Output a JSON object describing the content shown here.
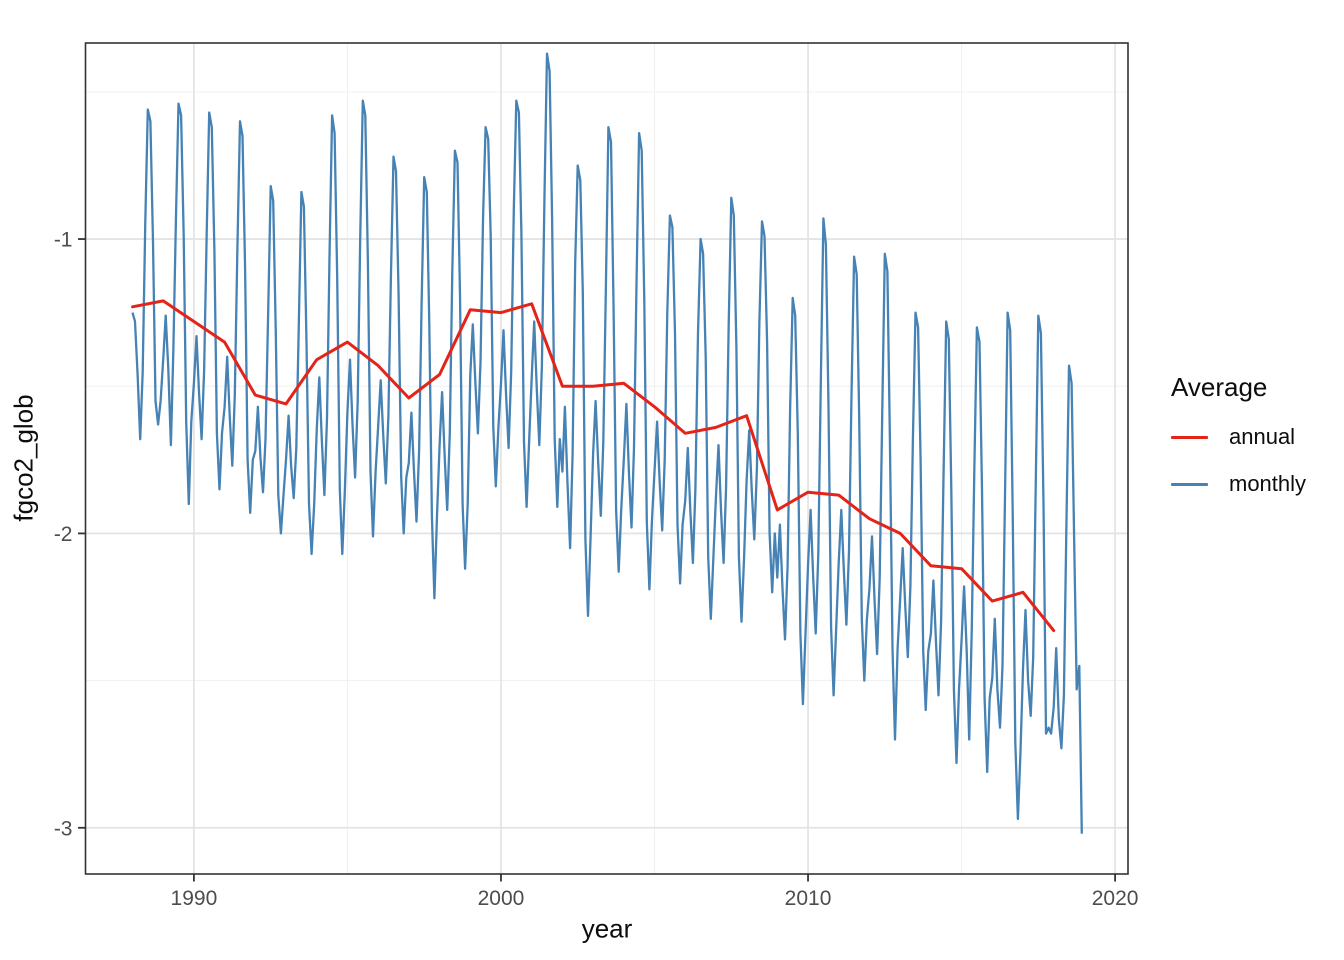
{
  "chart_data": {
    "type": "line",
    "title": "",
    "xlabel": "year",
    "ylabel": "fgco2_glob",
    "grid": "major and minor, light gray on white panel, dark panel border",
    "legend_position": "right",
    "legend_title": "Average",
    "x_axis": {
      "range": [
        1986.47,
        2020.42
      ],
      "ticks": [
        1990,
        2000,
        2010,
        2020
      ],
      "tick_labels": [
        "1990",
        "2000",
        "2010",
        "2020"
      ],
      "minor_ticks": [
        1995,
        2005,
        2015
      ]
    },
    "y_axis": {
      "range": [
        -3.157,
        -0.334
      ],
      "ticks": [
        -1,
        -2,
        -3
      ],
      "tick_labels": [
        "-1",
        "-2",
        "-3"
      ],
      "minor_ticks": [
        -0.5,
        -1.5,
        -2.5
      ]
    },
    "series": [
      {
        "name": "monthly",
        "color": "#4682b4",
        "x_start": 1988.0,
        "x_step_years": 0.0833333,
        "y_by_year": [
          [
            -1.25,
            -1.28,
            -1.46,
            -1.68,
            -1.45,
            -0.94,
            -0.56,
            -0.6,
            -1.01,
            -1.55,
            -1.63,
            -1.55
          ],
          [
            -1.41,
            -1.26,
            -1.44,
            -1.7,
            -1.37,
            -0.92,
            -0.54,
            -0.58,
            -0.99,
            -1.62,
            -1.9,
            -1.62
          ],
          [
            -1.49,
            -1.33,
            -1.52,
            -1.68,
            -1.45,
            -0.98,
            -0.57,
            -0.62,
            -1.04,
            -1.66,
            -1.85,
            -1.66
          ],
          [
            -1.57,
            -1.4,
            -1.6,
            -1.77,
            -1.53,
            -1.03,
            -0.6,
            -0.65,
            -1.1,
            -1.75,
            -1.93,
            -1.75
          ],
          [
            -1.72,
            -1.57,
            -1.74,
            -1.86,
            -1.68,
            -1.26,
            -0.82,
            -0.87,
            -1.32,
            -1.87,
            -2.0,
            -1.87
          ],
          [
            -1.75,
            -1.6,
            -1.77,
            -1.88,
            -1.71,
            -1.29,
            -0.84,
            -0.89,
            -1.35,
            -1.9,
            -2.07,
            -1.9
          ],
          [
            -1.65,
            -1.47,
            -1.68,
            -1.87,
            -1.61,
            -1.06,
            -0.58,
            -0.64,
            -1.13,
            -1.85,
            -2.07,
            -1.85
          ],
          [
            -1.59,
            -1.41,
            -1.63,
            -1.81,
            -1.55,
            -1.0,
            -0.53,
            -0.58,
            -1.08,
            -1.79,
            -2.01,
            -1.79
          ],
          [
            -1.64,
            -1.48,
            -1.67,
            -1.83,
            -1.6,
            -1.13,
            -0.72,
            -0.77,
            -1.19,
            -1.81,
            -2.0,
            -1.81
          ],
          [
            -1.76,
            -1.59,
            -1.79,
            -1.96,
            -1.72,
            -1.22,
            -0.79,
            -0.84,
            -1.29,
            -1.94,
            -2.22,
            -1.94
          ],
          [
            -1.7,
            -1.52,
            -1.74,
            -1.92,
            -1.66,
            -1.11,
            -0.7,
            -0.74,
            -1.19,
            -1.9,
            -2.12,
            -1.9
          ],
          [
            -1.46,
            -1.29,
            -1.49,
            -1.66,
            -1.42,
            -0.92,
            -0.62,
            -0.66,
            -0.99,
            -1.64,
            -1.84,
            -1.64
          ],
          [
            -1.49,
            -1.31,
            -1.53,
            -1.71,
            -1.45,
            -0.9,
            -0.53,
            -0.57,
            -0.98,
            -1.69,
            -1.91,
            -1.69
          ],
          [
            -1.47,
            -1.28,
            -1.51,
            -1.7,
            -1.43,
            -0.85,
            -0.37,
            -0.43,
            -0.93,
            -1.68,
            -1.91,
            -1.68
          ],
          [
            -1.79,
            -1.57,
            -1.83,
            -2.05,
            -1.73,
            -1.08,
            -0.75,
            -0.8,
            -1.18,
            -2.02,
            -2.28,
            -2.02
          ],
          [
            -1.73,
            -1.55,
            -1.76,
            -1.94,
            -1.69,
            -1.16,
            -0.62,
            -0.67,
            -1.24,
            -1.92,
            -2.13,
            -1.92
          ],
          [
            -1.75,
            -1.56,
            -1.79,
            -1.98,
            -1.71,
            -1.13,
            -0.64,
            -0.7,
            -1.21,
            -1.96,
            -2.19,
            -1.96
          ],
          [
            -1.79,
            -1.62,
            -1.82,
            -1.99,
            -1.75,
            -1.25,
            -0.92,
            -0.96,
            -1.32,
            -1.97,
            -2.17,
            -1.97
          ],
          [
            -1.89,
            -1.71,
            -1.92,
            -2.1,
            -1.85,
            -1.32,
            -1.0,
            -1.05,
            -1.4,
            -2.08,
            -2.29,
            -2.08
          ],
          [
            -1.88,
            -1.7,
            -1.92,
            -2.1,
            -1.84,
            -1.29,
            -0.86,
            -0.92,
            -1.37,
            -2.08,
            -2.3,
            -2.08
          ],
          [
            -1.82,
            -1.65,
            -1.85,
            -2.02,
            -1.78,
            -1.28,
            -0.94,
            -0.99,
            -1.35,
            -2.0,
            -2.2,
            -2.0
          ],
          [
            -2.15,
            -1.97,
            -2.18,
            -2.36,
            -2.11,
            -1.58,
            -1.2,
            -1.26,
            -1.66,
            -2.34,
            -2.58,
            -2.34
          ],
          [
            -2.11,
            -1.92,
            -2.15,
            -2.34,
            -2.07,
            -1.49,
            -0.93,
            -1.02,
            -1.57,
            -2.32,
            -2.55,
            -2.32
          ],
          [
            -2.1,
            -1.92,
            -2.13,
            -2.31,
            -2.06,
            -1.53,
            -1.06,
            -1.12,
            -1.61,
            -2.29,
            -2.5,
            -2.29
          ],
          [
            -2.19,
            -2.01,
            -2.23,
            -2.41,
            -2.15,
            -1.6,
            -1.05,
            -1.11,
            -1.68,
            -2.39,
            -2.7,
            -2.39
          ],
          [
            -2.22,
            -2.05,
            -2.25,
            -2.42,
            -2.18,
            -1.68,
            -1.25,
            -1.3,
            -1.75,
            -2.4,
            -2.6,
            -2.4
          ],
          [
            -2.34,
            -2.16,
            -2.37,
            -2.55,
            -2.3,
            -1.77,
            -1.28,
            -1.34,
            -1.85,
            -2.53,
            -2.78,
            -2.53
          ],
          [
            -2.36,
            -2.18,
            -2.4,
            -2.7,
            -2.32,
            -1.77,
            -1.3,
            -1.35,
            -1.85,
            -2.56,
            -2.81,
            -2.56
          ],
          [
            -2.49,
            -2.29,
            -2.53,
            -2.66,
            -2.45,
            -1.85,
            -1.25,
            -1.31,
            -1.93,
            -2.71,
            -2.97,
            -2.75
          ],
          [
            -2.46,
            -2.26,
            -2.5,
            -2.62,
            -2.42,
            -1.82,
            -1.26,
            -1.32,
            -1.9,
            -2.68,
            -2.66,
            -2.68
          ],
          [
            -2.59,
            -2.39,
            -2.63,
            -2.73,
            -2.55,
            -1.95,
            -1.43,
            -1.49,
            -2.03,
            -2.53,
            -2.45,
            -3.02
          ]
        ]
      },
      {
        "name": "annual",
        "color": "#e42319",
        "x_start": 1988,
        "x_step_years": 1,
        "y": [
          -1.23,
          -1.21,
          -1.28,
          -1.35,
          -1.53,
          -1.56,
          -1.41,
          -1.35,
          -1.43,
          -1.54,
          -1.46,
          -1.24,
          -1.25,
          -1.22,
          -1.5,
          -1.5,
          -1.49,
          -1.57,
          -1.66,
          -1.64,
          -1.6,
          -1.92,
          -1.86,
          -1.87,
          -1.95,
          -2.0,
          -2.11,
          -2.12,
          -2.23,
          -2.2,
          -2.33
        ]
      }
    ],
    "legend_items": [
      {
        "label": "annual",
        "color": "#e42319"
      },
      {
        "label": "monthly",
        "color": "#4682b4"
      }
    ],
    "style_colors": {
      "grid_major": "#e4e4e4",
      "grid_minor": "#f1f1f1",
      "panel_border": "#333333",
      "tick_mark": "#333333",
      "tick_text": "#4d4d4d",
      "title_text": "#0d0d0d",
      "background": "#ffffff"
    }
  }
}
